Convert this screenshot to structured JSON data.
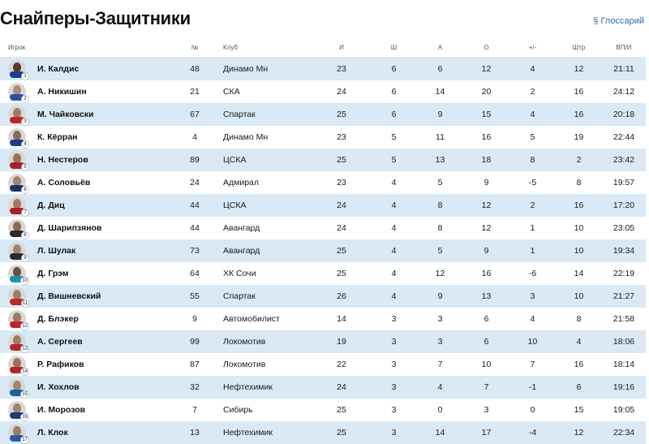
{
  "page": {
    "title": "Снайперы-Защитники",
    "glossary_label": "§ Глоссарий"
  },
  "table": {
    "headers": {
      "player": "Игрок",
      "number": "№",
      "club": "Клуб",
      "games": "И",
      "goals": "Ш",
      "assists": "А",
      "points": "О",
      "plus_minus": "+/-",
      "pim": "Штр",
      "toi": "ВП/И"
    },
    "rows": [
      {
        "rank": "1",
        "player": "И. Калдис",
        "number": "48",
        "club": "Динамо Мн",
        "games": "23",
        "goals": "6",
        "assists": "6",
        "points": "12",
        "plus_minus": "4",
        "pim": "12",
        "toi": "21:11",
        "shirt": "#1a3f8a",
        "skin": "#5b3b2a"
      },
      {
        "rank": "2",
        "player": "А. Никишин",
        "number": "21",
        "club": "СКА",
        "games": "24",
        "goals": "6",
        "assists": "14",
        "points": "20",
        "plus_minus": "2",
        "pim": "16",
        "toi": "24:12",
        "shirt": "#2b4fa8",
        "skin": "#b08a6f"
      },
      {
        "rank": "3",
        "player": "М. Чайковски",
        "number": "67",
        "club": "Спартак",
        "games": "25",
        "goals": "6",
        "assists": "9",
        "points": "15",
        "plus_minus": "4",
        "pim": "16",
        "toi": "20:18",
        "shirt": "#c0242c",
        "skin": "#a07c62"
      },
      {
        "rank": "4",
        "player": "К. Кёрран",
        "number": "4",
        "club": "Динамо Мн",
        "games": "23",
        "goals": "5",
        "assists": "11",
        "points": "16",
        "plus_minus": "5",
        "pim": "19",
        "toi": "22:44",
        "shirt": "#1a3f8a",
        "skin": "#8a6a52"
      },
      {
        "rank": "5",
        "player": "Н. Нестеров",
        "number": "89",
        "club": "ЦСКА",
        "games": "25",
        "goals": "5",
        "assists": "13",
        "points": "18",
        "plus_minus": "8",
        "pim": "2",
        "toi": "23:42",
        "shirt": "#b01c22",
        "skin": "#9a7358"
      },
      {
        "rank": "6",
        "player": "А. Соловьёв",
        "number": "24",
        "club": "Адмирал",
        "games": "23",
        "goals": "4",
        "assists": "5",
        "points": "9",
        "plus_minus": "-5",
        "pim": "8",
        "toi": "19:57",
        "shirt": "#1c2f6b",
        "skin": "#a3826a"
      },
      {
        "rank": "7",
        "player": "Д. Диц",
        "number": "44",
        "club": "ЦСКА",
        "games": "24",
        "goals": "4",
        "assists": "8",
        "points": "12",
        "plus_minus": "2",
        "pim": "16",
        "toi": "17:20",
        "shirt": "#b01c22",
        "skin": "#9f7a60"
      },
      {
        "rank": "8",
        "player": "Д. Шарипзянов",
        "number": "44",
        "club": "Авангард",
        "games": "24",
        "goals": "4",
        "assists": "8",
        "points": "12",
        "plus_minus": "1",
        "pim": "10",
        "toi": "23:05",
        "shirt": "#2a2a2a",
        "skin": "#8e6a50"
      },
      {
        "rank": "9",
        "player": "Л. Шулак",
        "number": "73",
        "club": "Авангард",
        "games": "25",
        "goals": "4",
        "assists": "5",
        "points": "9",
        "plus_minus": "1",
        "pim": "10",
        "toi": "19:34",
        "shirt": "#2a2a2a",
        "skin": "#a5836a"
      },
      {
        "rank": "10",
        "player": "Д. Грэм",
        "number": "64",
        "club": "ХК Сочи",
        "games": "25",
        "goals": "4",
        "assists": "12",
        "points": "16",
        "plus_minus": "-6",
        "pim": "14",
        "toi": "22:19",
        "shirt": "#1d8fb0",
        "skin": "#6d5040"
      },
      {
        "rank": "11",
        "player": "Д. Вишневский",
        "number": "55",
        "club": "Спартак",
        "games": "26",
        "goals": "4",
        "assists": "9",
        "points": "13",
        "plus_minus": "3",
        "pim": "10",
        "toi": "21:27",
        "shirt": "#c0242c",
        "skin": "#a07c62"
      },
      {
        "rank": "12",
        "player": "Д. Блэкер",
        "number": "9",
        "club": "Автомобилист",
        "games": "14",
        "goals": "3",
        "assists": "3",
        "points": "6",
        "plus_minus": "4",
        "pim": "8",
        "toi": "21:58",
        "shirt": "#c8202a",
        "skin": "#9d7a60"
      },
      {
        "rank": "13",
        "player": "А. Сергеев",
        "number": "99",
        "club": "Локомотив",
        "games": "19",
        "goals": "3",
        "assists": "3",
        "points": "6",
        "plus_minus": "10",
        "pim": "4",
        "toi": "18:06",
        "shirt": "#b8222a",
        "skin": "#a07c62"
      },
      {
        "rank": "14",
        "player": "Р. Рафиков",
        "number": "87",
        "club": "Локомотив",
        "games": "22",
        "goals": "3",
        "assists": "7",
        "points": "10",
        "plus_minus": "7",
        "pim": "16",
        "toi": "18:14",
        "shirt": "#b8222a",
        "skin": "#9a7358"
      },
      {
        "rank": "15",
        "player": "И. Хохлов",
        "number": "32",
        "club": "Нефтехимик",
        "games": "24",
        "goals": "3",
        "assists": "4",
        "points": "7",
        "plus_minus": "-1",
        "pim": "6",
        "toi": "19:16",
        "shirt": "#1f5fa0",
        "skin": "#a3826a"
      },
      {
        "rank": "16",
        "player": "И. Морозов",
        "number": "7",
        "club": "Сибирь",
        "games": "25",
        "goals": "3",
        "assists": "0",
        "points": "3",
        "plus_minus": "0",
        "pim": "15",
        "toi": "19:05",
        "shirt": "#1c3a7a",
        "skin": "#a5836a"
      },
      {
        "rank": "17",
        "player": "Л. Клок",
        "number": "13",
        "club": "Нефтехимик",
        "games": "25",
        "goals": "3",
        "assists": "14",
        "points": "17",
        "plus_minus": "-4",
        "pim": "12",
        "toi": "22:34",
        "shirt": "#1f5fa0",
        "skin": "#a07c62"
      }
    ]
  }
}
